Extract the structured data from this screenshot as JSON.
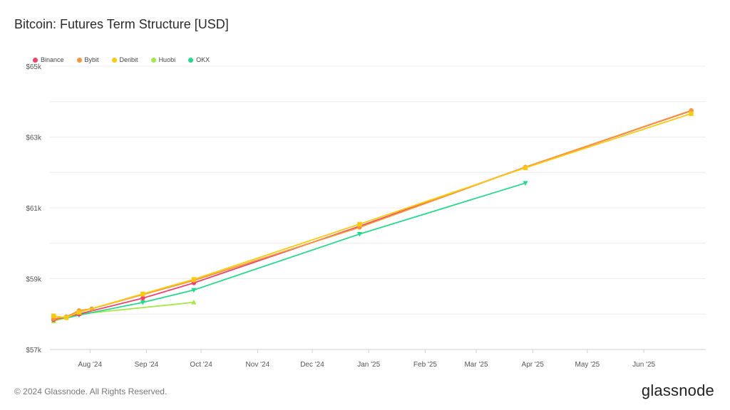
{
  "title": "Bitcoin: Futures Term Structure [USD]",
  "footer": "© 2024 Glassnode. All Rights Reserved.",
  "logo": "glassnode",
  "chart_data": {
    "type": "line",
    "title": "Bitcoin: Futures Term Structure [USD]",
    "ylabel": "",
    "xlabel": "",
    "ylim": [
      57000,
      65000
    ],
    "xlim": [
      "2024-07-10",
      "2025-07-05"
    ],
    "grid": true,
    "legend_position": "top-left",
    "y_ticks": [
      {
        "value": 57000,
        "label": "$57k"
      },
      {
        "value": 59000,
        "label": "$59k"
      },
      {
        "value": 61000,
        "label": "$61k"
      },
      {
        "value": 63000,
        "label": "$63k"
      },
      {
        "value": 65000,
        "label": "$65k"
      }
    ],
    "x_ticks": [
      {
        "date": "2024-08-01",
        "label": "Aug '24"
      },
      {
        "date": "2024-09-01",
        "label": "Sep '24"
      },
      {
        "date": "2024-10-01",
        "label": "Oct '24"
      },
      {
        "date": "2024-11-01",
        "label": "Nov '24"
      },
      {
        "date": "2024-12-01",
        "label": "Dec '24"
      },
      {
        "date": "2025-01-01",
        "label": "Jan '25"
      },
      {
        "date": "2025-02-01",
        "label": "Feb '25"
      },
      {
        "date": "2025-03-01",
        "label": "Mar '25"
      },
      {
        "date": "2025-04-01",
        "label": "Apr '25"
      },
      {
        "date": "2025-05-01",
        "label": "May '25"
      },
      {
        "date": "2025-06-01",
        "label": "Jun '25"
      }
    ],
    "series": [
      {
        "name": "Binance",
        "color": "#f0436a",
        "marker": "circle",
        "points": [
          [
            "2024-07-12",
            57840
          ],
          [
            "2024-07-19",
            57920
          ],
          [
            "2024-07-26",
            58000
          ],
          [
            "2024-08-30",
            58450
          ],
          [
            "2024-09-27",
            58880
          ],
          [
            "2024-12-27",
            60480
          ],
          [
            "2025-03-28",
            62150
          ],
          [
            "2025-06-27",
            63740
          ]
        ]
      },
      {
        "name": "Bybit",
        "color": "#f7953b",
        "marker": "circle",
        "points": [
          [
            "2024-07-12",
            57870
          ],
          [
            "2024-07-19",
            57920
          ],
          [
            "2024-07-26",
            58100
          ],
          [
            "2024-08-02",
            58150
          ],
          [
            "2024-08-30",
            58550
          ],
          [
            "2024-09-27",
            58950
          ],
          [
            "2024-12-27",
            60450
          ],
          [
            "2025-03-28",
            62150
          ],
          [
            "2025-06-27",
            63750
          ]
        ]
      },
      {
        "name": "Deribit",
        "color": "#fbca10",
        "marker": "square",
        "points": [
          [
            "2024-07-12",
            57950
          ],
          [
            "2024-07-19",
            57900
          ],
          [
            "2024-07-26",
            58050
          ],
          [
            "2024-08-30",
            58570
          ],
          [
            "2024-09-27",
            58980
          ],
          [
            "2024-12-27",
            60540
          ],
          [
            "2025-03-28",
            62130
          ],
          [
            "2025-06-27",
            63660
          ]
        ]
      },
      {
        "name": "Huobi",
        "color": "#a4e84a",
        "marker": "triangle-up",
        "points": [
          [
            "2024-07-12",
            57800
          ],
          [
            "2024-07-19",
            57900
          ],
          [
            "2024-07-26",
            58000
          ],
          [
            "2024-09-27",
            58330
          ]
        ]
      },
      {
        "name": "OKX",
        "color": "#27d88c",
        "marker": "triangle-down",
        "points": [
          [
            "2024-07-12",
            57860
          ],
          [
            "2024-07-19",
            57890
          ],
          [
            "2024-07-26",
            57970
          ],
          [
            "2024-08-30",
            58330
          ],
          [
            "2024-09-27",
            58680
          ],
          [
            "2024-12-27",
            60260
          ],
          [
            "2025-03-28",
            61700
          ]
        ]
      }
    ]
  }
}
